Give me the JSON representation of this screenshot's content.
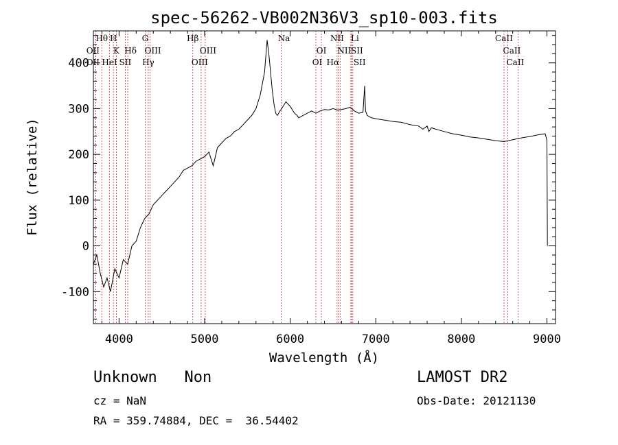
{
  "chart_data": {
    "type": "line",
    "title": "spec-56262-VB002N36V3_sp10-003.fits",
    "xlabel": "Wavelength (Å)",
    "ylabel": "Flux (relative)",
    "xlim": [
      3700,
      9100
    ],
    "ylim": [
      -170,
      470
    ],
    "xticks": [
      4000,
      5000,
      6000,
      7000,
      8000,
      9000
    ],
    "yticks": [
      -100,
      0,
      100,
      200,
      300,
      400
    ],
    "series": [
      {
        "x": [
          3700,
          3740,
          3780,
          3820,
          3860,
          3900,
          3950,
          4000,
          4050,
          4100,
          4150,
          4200,
          4250,
          4300,
          4350,
          4400,
          4450,
          4500,
          4550,
          4600,
          4650,
          4700,
          4750,
          4800,
          4850,
          4900,
          4950,
          5000,
          5050,
          5100,
          5150,
          5200,
          5250,
          5300,
          5350,
          5400,
          5450,
          5500,
          5550,
          5600,
          5650,
          5700,
          5730,
          5750,
          5770,
          5790,
          5810,
          5830,
          5850,
          5880,
          5900,
          5950,
          6000,
          6050,
          6080,
          6100,
          6150,
          6200,
          6250,
          6300,
          6350,
          6400,
          6450,
          6500,
          6550,
          6600,
          6650,
          6700,
          6750,
          6800,
          6850,
          6870,
          6880,
          6890,
          6900,
          6950,
          7000,
          7100,
          7200,
          7300,
          7400,
          7500,
          7550,
          7600,
          7620,
          7650,
          7700,
          7800,
          7900,
          8000,
          8100,
          8200,
          8300,
          8400,
          8500,
          8600,
          8700,
          8800,
          8900,
          8980,
          9000,
          9005
        ],
        "y": [
          -40,
          -20,
          -60,
          -90,
          -70,
          -100,
          -50,
          -70,
          -30,
          -40,
          0,
          10,
          40,
          60,
          70,
          90,
          100,
          110,
          120,
          130,
          140,
          150,
          165,
          170,
          175,
          185,
          190,
          195,
          205,
          175,
          215,
          225,
          235,
          240,
          250,
          255,
          265,
          275,
          285,
          300,
          330,
          380,
          450,
          420,
          380,
          340,
          310,
          290,
          285,
          295,
          300,
          315,
          305,
          290,
          285,
          280,
          285,
          290,
          295,
          290,
          295,
          298,
          297,
          300,
          297,
          298,
          300,
          303,
          295,
          290,
          292,
          350,
          295,
          290,
          285,
          280,
          278,
          275,
          272,
          270,
          265,
          262,
          255,
          262,
          250,
          258,
          255,
          250,
          245,
          242,
          238,
          236,
          233,
          230,
          228,
          232,
          236,
          239,
          243,
          245,
          230,
          0
        ]
      }
    ],
    "lines": [
      {
        "name": "Hθ",
        "x": 3798
      },
      {
        "name": "OII",
        "x": 3727
      },
      {
        "name": "OII",
        "x": 3727
      },
      {
        "name": "H",
        "x": 3934
      },
      {
        "name": "K",
        "x": 3969
      },
      {
        "name": "HeI",
        "x": 3889
      },
      {
        "name": "Hδ",
        "x": 4102
      },
      {
        "name": "SII",
        "x": 4072
      },
      {
        "name": "G",
        "x": 4305
      },
      {
        "name": "OIII",
        "x": 4363
      },
      {
        "name": "Hγ",
        "x": 4341
      },
      {
        "name": "Hβ",
        "x": 4861
      },
      {
        "name": "OIII",
        "x": 4959
      },
      {
        "name": "OIII",
        "x": 5007
      },
      {
        "name": "Na",
        "x": 5895
      },
      {
        "name": "OI",
        "x": 6300
      },
      {
        "name": "OI",
        "x": 6364
      },
      {
        "name": "NII",
        "x": 6548
      },
      {
        "name": "NII",
        "x": 6583
      },
      {
        "name": "Hα",
        "x": 6563
      },
      {
        "name": "Li",
        "x": 6708
      },
      {
        "name": "SII",
        "x": 6716
      },
      {
        "name": "SII",
        "x": 6731
      },
      {
        "name": "CaII",
        "x": 8498
      },
      {
        "name": "CaII",
        "x": 8542
      },
      {
        "name": "CaII",
        "x": 8662
      }
    ]
  },
  "info": {
    "class": "Unknown   Non",
    "survey": "LAMOST DR2",
    "cz": "cz = NaN",
    "obsdate": "Obs-Date: 20121130",
    "radec": "RA = 359.74884, DEC =  36.54402"
  }
}
